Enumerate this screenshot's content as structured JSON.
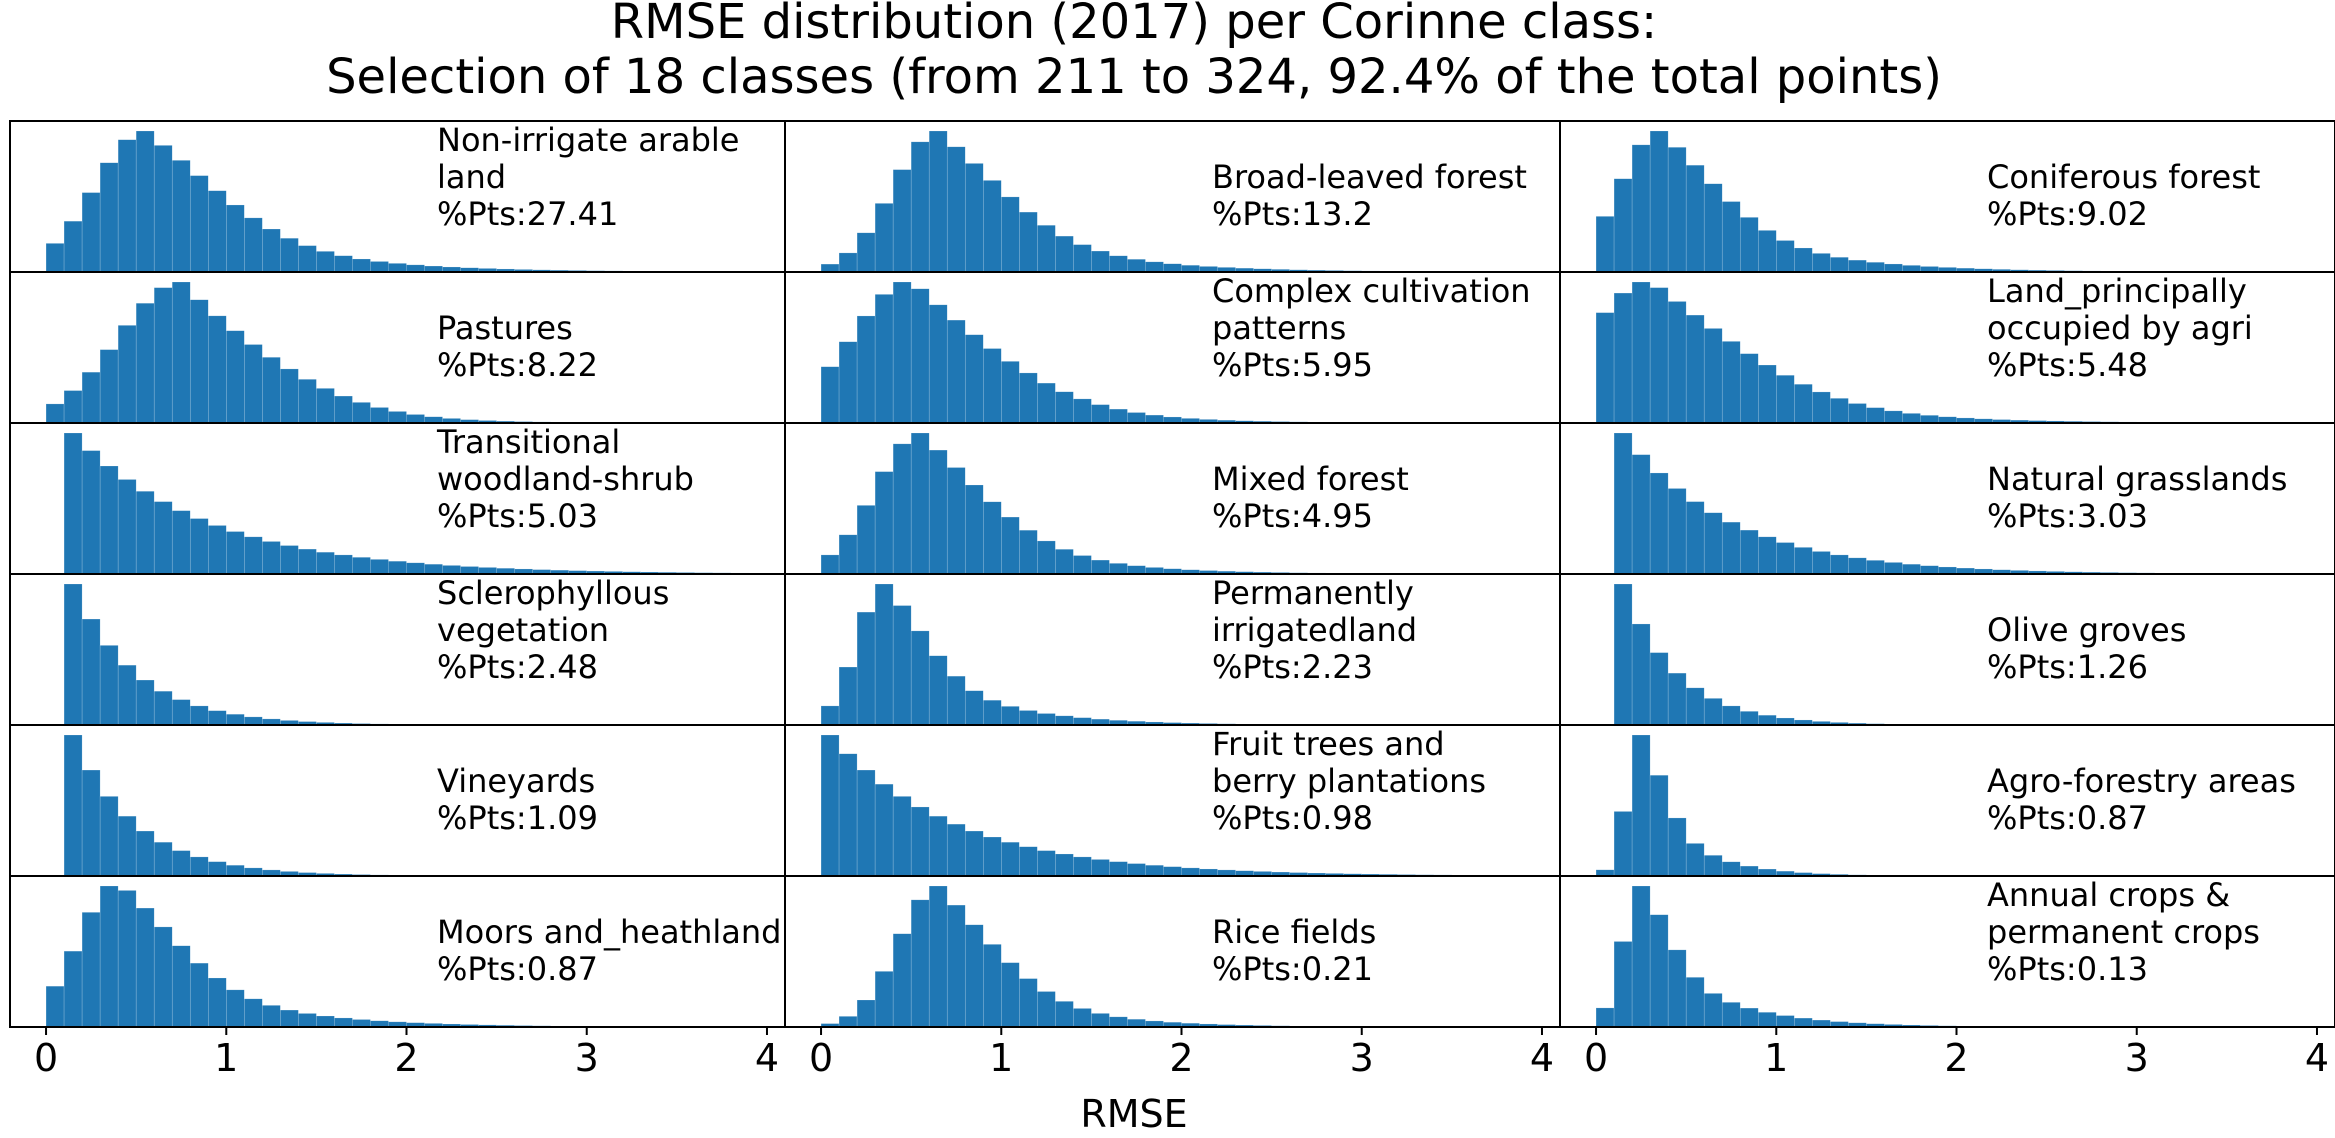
{
  "chart_data": {
    "type": "bar",
    "title": [
      "RMSE distribution (2017) per Corinne class:",
      "Selection of 18 classes (from 211 to 324, 92.4% of the total points)"
    ],
    "xlabel": "RMSE",
    "xlim": [
      -0.2,
      4.1
    ],
    "xticks": [
      0,
      1,
      2,
      3,
      4
    ],
    "bin_width": 0.1,
    "bar_color": "#1f77b4",
    "layout": {
      "rows": 6,
      "cols": 3
    },
    "panels": [
      {
        "label": [
          "Non-irrigate arable",
          "land",
          "%Pts:27.41"
        ],
        "shape": "skew",
        "peak": 0.55,
        "spread": 0.28,
        "tail": 0.6
      },
      {
        "label": [
          "Broad-leaved forest",
          "%Pts:13.2"
        ],
        "shape": "skew",
        "peak": 0.65,
        "spread": 0.25,
        "tail": 0.55
      },
      {
        "label": [
          "Coniferous forest",
          "%Pts:9.02"
        ],
        "shape": "skew",
        "peak": 0.35,
        "spread": 0.22,
        "tail": 0.55
      },
      {
        "label": [
          "Pastures",
          "%Pts:8.22"
        ],
        "shape": "skew",
        "peak": 0.75,
        "spread": 0.35,
        "tail": 0.45
      },
      {
        "label": [
          "Complex cultivation",
          "patterns",
          "%Pts:5.95"
        ],
        "shape": "skew",
        "peak": 0.5,
        "spread": 0.33,
        "tail": 0.5
      },
      {
        "label": [
          "Land_principally",
          "occupied by agri",
          "%Pts:5.48"
        ],
        "shape": "skew",
        "peak": 0.3,
        "spread": 0.35,
        "tail": 0.6
      },
      {
        "label": [
          "Transitional",
          "woodland-shrub",
          "%Pts:5.03"
        ],
        "shape": "decay",
        "peak": 0.15,
        "spread": 0.05,
        "tail": 0.75
      },
      {
        "label": [
          "Mixed forest",
          "%Pts:4.95"
        ],
        "shape": "skew",
        "peak": 0.55,
        "spread": 0.25,
        "tail": 0.5
      },
      {
        "label": [
          "Natural grasslands",
          "%Pts:3.03"
        ],
        "shape": "decay",
        "peak": 0.15,
        "spread": 0.05,
        "tail": 0.6
      },
      {
        "label": [
          "Sclerophyllous",
          "vegetation",
          "%Pts:2.48"
        ],
        "shape": "decay",
        "peak": 0.15,
        "spread": 0.05,
        "tail": 0.35
      },
      {
        "label": [
          "Permanently",
          "irrigatedland",
          "%Pts:2.23"
        ],
        "shape": "skew",
        "peak": 0.35,
        "spread": 0.15,
        "tail": 0.45
      },
      {
        "label": [
          "Olive groves",
          "%Pts:1.26"
        ],
        "shape": "decay",
        "peak": 0.15,
        "spread": 0.05,
        "tail": 0.3
      },
      {
        "label": [
          "Vineyards",
          "%Pts:1.09"
        ],
        "shape": "decay",
        "peak": 0.15,
        "spread": 0.06,
        "tail": 0.35
      },
      {
        "label": [
          "Fruit trees and",
          "berry plantations",
          "%Pts:0.98"
        ],
        "shape": "decay",
        "peak": 0.05,
        "spread": 0.04,
        "tail": 0.7
      },
      {
        "label": [
          "Agro-forestry areas",
          "%Pts:0.87"
        ],
        "shape": "skew",
        "peak": 0.25,
        "spread": 0.08,
        "tail": 0.28
      },
      {
        "label": [
          "Moors and_heathland",
          "%Pts:0.87"
        ],
        "shape": "skew",
        "peak": 0.4,
        "spread": 0.22,
        "tail": 0.55
      },
      {
        "label": [
          "Rice fields",
          "%Pts:0.21"
        ],
        "shape": "skew",
        "peak": 0.65,
        "spread": 0.22,
        "tail": 0.45
      },
      {
        "label": [
          "Annual crops &",
          "permanent crops",
          "%Pts:0.13"
        ],
        "shape": "skew",
        "peak": 0.25,
        "spread": 0.1,
        "tail": 0.4
      }
    ]
  }
}
